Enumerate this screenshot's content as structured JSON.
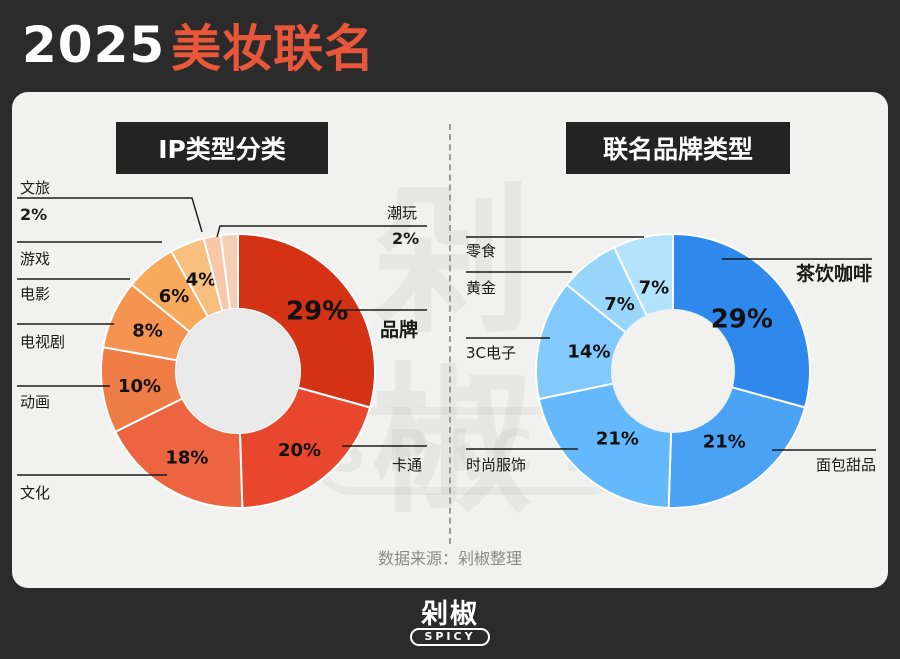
{
  "header": {
    "year": "2025",
    "title": "美妆联名"
  },
  "watermark": {
    "text": "剁椒",
    "sub": "SPICY"
  },
  "source": "数据来源：剁椒整理",
  "logo": {
    "text": "剁椒",
    "sub": "SPICY"
  },
  "colors": {
    "background": "#2b2b2b",
    "card": "#f1f1f0",
    "title_accent": "#e8573a"
  },
  "chart_data": [
    {
      "type": "pie",
      "title": "IP类型分类",
      "donut": true,
      "categories": [
        "品牌",
        "卡通",
        "文化",
        "动画",
        "电视剧",
        "电影",
        "游戏",
        "文旅",
        "潮玩"
      ],
      "values": [
        29,
        20,
        18,
        10,
        8,
        6,
        4,
        2,
        2
      ],
      "labels": [
        "29%",
        "20%",
        "18%",
        "10%",
        "8%",
        "6%",
        "4%",
        "2%",
        "2%"
      ],
      "colors": [
        "#d43214",
        "#e8472e",
        "#ec6440",
        "#f07c45",
        "#f59350",
        "#f8a95c",
        "#f9bf7e",
        "#f7c7a8",
        "#f6cdb5"
      ]
    },
    {
      "type": "pie",
      "title": "联名品牌类型",
      "donut": true,
      "categories": [
        "茶饮咖啡",
        "面包甜品",
        "时尚服饰",
        "3C电子",
        "黄金",
        "零食"
      ],
      "values": [
        29,
        21,
        21,
        14,
        7,
        7
      ],
      "labels": [
        "29%",
        "21%",
        "21%",
        "14%",
        "7%",
        "7%"
      ],
      "colors": [
        "#2f89ec",
        "#4aa2f4",
        "#63b9fb",
        "#82c9fc",
        "#99d6fc",
        "#b3e3fc"
      ]
    }
  ]
}
